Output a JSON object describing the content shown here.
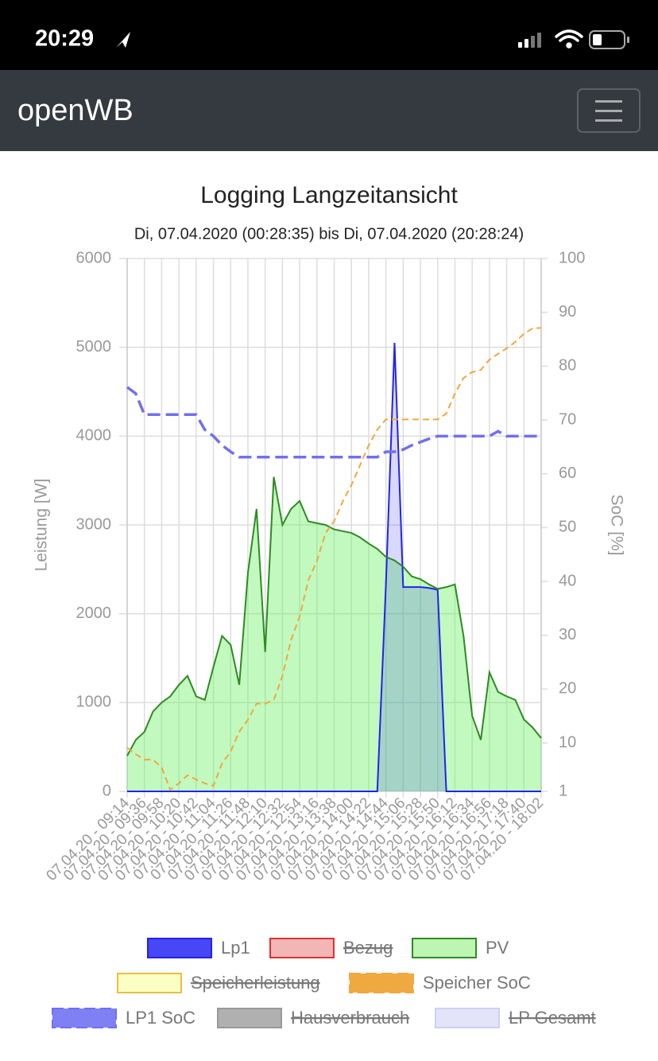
{
  "status_bar": {
    "time": "20:29"
  },
  "navbar": {
    "brand": "openWB"
  },
  "chart_data": {
    "type": "line",
    "title": "Logging Langzeitansicht",
    "subtitle": "Di, 07.04.2020 (00:28:35) bis Di, 07.04.2020 (20:28:24)",
    "y_label": "Leistung [W]",
    "y2_label": "SoC [%]",
    "categories": [
      "07.04.20 - 09:14",
      null,
      "07.04.20 - 09:36",
      null,
      "07.04.20 - 09:58",
      null,
      "07.04.20 - 10:20",
      null,
      "07.04.20 - 10:42",
      null,
      "07.04.20 - 11:04",
      null,
      "07.04.20 - 11:26",
      null,
      "07.04.20 - 11:48",
      null,
      "07.04.20 - 12:10",
      null,
      "07.04.20 - 12:32",
      null,
      "07.04.20 - 12:54",
      null,
      "07.04.20 - 13:16",
      null,
      "07.04.20 - 13:38",
      null,
      "07.04.20 - 14:00",
      null,
      "07.04.20 - 14:22",
      null,
      "07.04.20 - 14:44",
      null,
      "07.04.20 - 15:06",
      null,
      "07.04.20 - 15:28",
      null,
      "07.04.20 - 15:50",
      null,
      "07.04.20 - 16:12",
      null,
      "07.04.20 - 16:34",
      null,
      "07.04.20 - 16:56",
      null,
      "07.04.20 - 17:18",
      null,
      "07.04.20 - 17:40",
      null,
      "07.04.20 - 18:02"
    ],
    "ylim": [
      0,
      6000
    ],
    "yticks": [
      0,
      1000,
      2000,
      3000,
      4000,
      5000,
      6000
    ],
    "y2lim": [
      1,
      100
    ],
    "y2ticks": [
      1,
      10,
      20,
      30,
      40,
      50,
      60,
      70,
      80,
      90,
      100
    ],
    "grid": true,
    "legend": "bottom",
    "series": [
      {
        "name": "Lp1",
        "color": "#2222ee",
        "fill": "rgba(0,0,255,0.15)",
        "legend_fill": "#4747f5",
        "values": [
          0,
          0,
          0,
          0,
          0,
          0,
          0,
          0,
          0,
          0,
          0,
          0,
          0,
          0,
          0,
          0,
          0,
          0,
          0,
          0,
          0,
          0,
          0,
          0,
          0,
          0,
          0,
          0,
          0,
          0,
          2330,
          5050,
          2300,
          2300,
          2300,
          2290,
          2270,
          0,
          0,
          0,
          0,
          0,
          0,
          0,
          0,
          0,
          0,
          0,
          0
        ]
      },
      {
        "name": "Bezug",
        "color": "#e03030",
        "legend_fill": "#f3b6b6",
        "hidden": true
      },
      {
        "name": "PV",
        "color": "#2e8b22",
        "fill": "rgba(110,240,100,0.42)",
        "legend_fill": "#bdf5b2",
        "values": [
          400,
          580,
          670,
          900,
          1000,
          1070,
          1200,
          1300,
          1070,
          1030,
          1400,
          1750,
          1650,
          1200,
          2460,
          3180,
          1570,
          3540,
          3000,
          3180,
          3270,
          3040,
          3020,
          3000,
          2950,
          2930,
          2910,
          2860,
          2790,
          2730,
          2640,
          2600,
          2530,
          2420,
          2390,
          2330,
          2280,
          2300,
          2330,
          1750,
          850,
          580,
          1340,
          1120,
          1070,
          1030,
          810,
          720,
          600
        ]
      },
      {
        "name": "Speicherleistung",
        "color": "#e8c040",
        "legend_fill": "#fbffc4",
        "hidden": true
      },
      {
        "name": "Speicher SoC",
        "color": "#f0a840",
        "legend_fill": "#f0a840",
        "axis": "y2",
        "dashed": true,
        "values": [
          9.1,
          7.9,
          6.9,
          6.9,
          5.4,
          1.3,
          2.5,
          4.0,
          3.2,
          2.5,
          2.0,
          6.2,
          8.4,
          12.1,
          14.3,
          17.3,
          17.3,
          18.0,
          22.4,
          29.1,
          33.5,
          40.2,
          43.8,
          49.0,
          51.2,
          54.9,
          57.9,
          61.6,
          65.3,
          68.2,
          70.1,
          70.1,
          70.1,
          70.1,
          70.1,
          70.1,
          70.1,
          71.2,
          74.9,
          77.8,
          78.9,
          79.3,
          81.2,
          82.3,
          83.3,
          84.5,
          86.0,
          87.0,
          87.1
        ]
      },
      {
        "name": "LP1 SoC",
        "color": "#7070f0",
        "legend_fill": "#8080f5",
        "axis": "y2",
        "dashed": true,
        "values": [
          76.1,
          74.9,
          71.0,
          71.0,
          71.0,
          71.0,
          71.0,
          71.0,
          71.0,
          68.2,
          67.0,
          65.3,
          64.1,
          63.1,
          63.1,
          63.1,
          63.1,
          63.1,
          63.1,
          63.1,
          63.1,
          63.1,
          63.1,
          63.1,
          63.1,
          63.1,
          63.1,
          63.1,
          63.1,
          63.1,
          64.1,
          64.1,
          64.5,
          65.3,
          65.9,
          66.5,
          67.0,
          67.0,
          67.0,
          67.0,
          67.0,
          67.0,
          67.0,
          67.9,
          67.0,
          67.0,
          67.0,
          67.0,
          67.0
        ]
      },
      {
        "name": "Hausverbrauch",
        "color": "#999999",
        "legend_fill": "#b0b0b0",
        "hidden": true
      },
      {
        "name": "LP Gesamt",
        "color": "#d0d0ee",
        "legend_fill": "#e3e3fa",
        "hidden": true
      }
    ]
  }
}
